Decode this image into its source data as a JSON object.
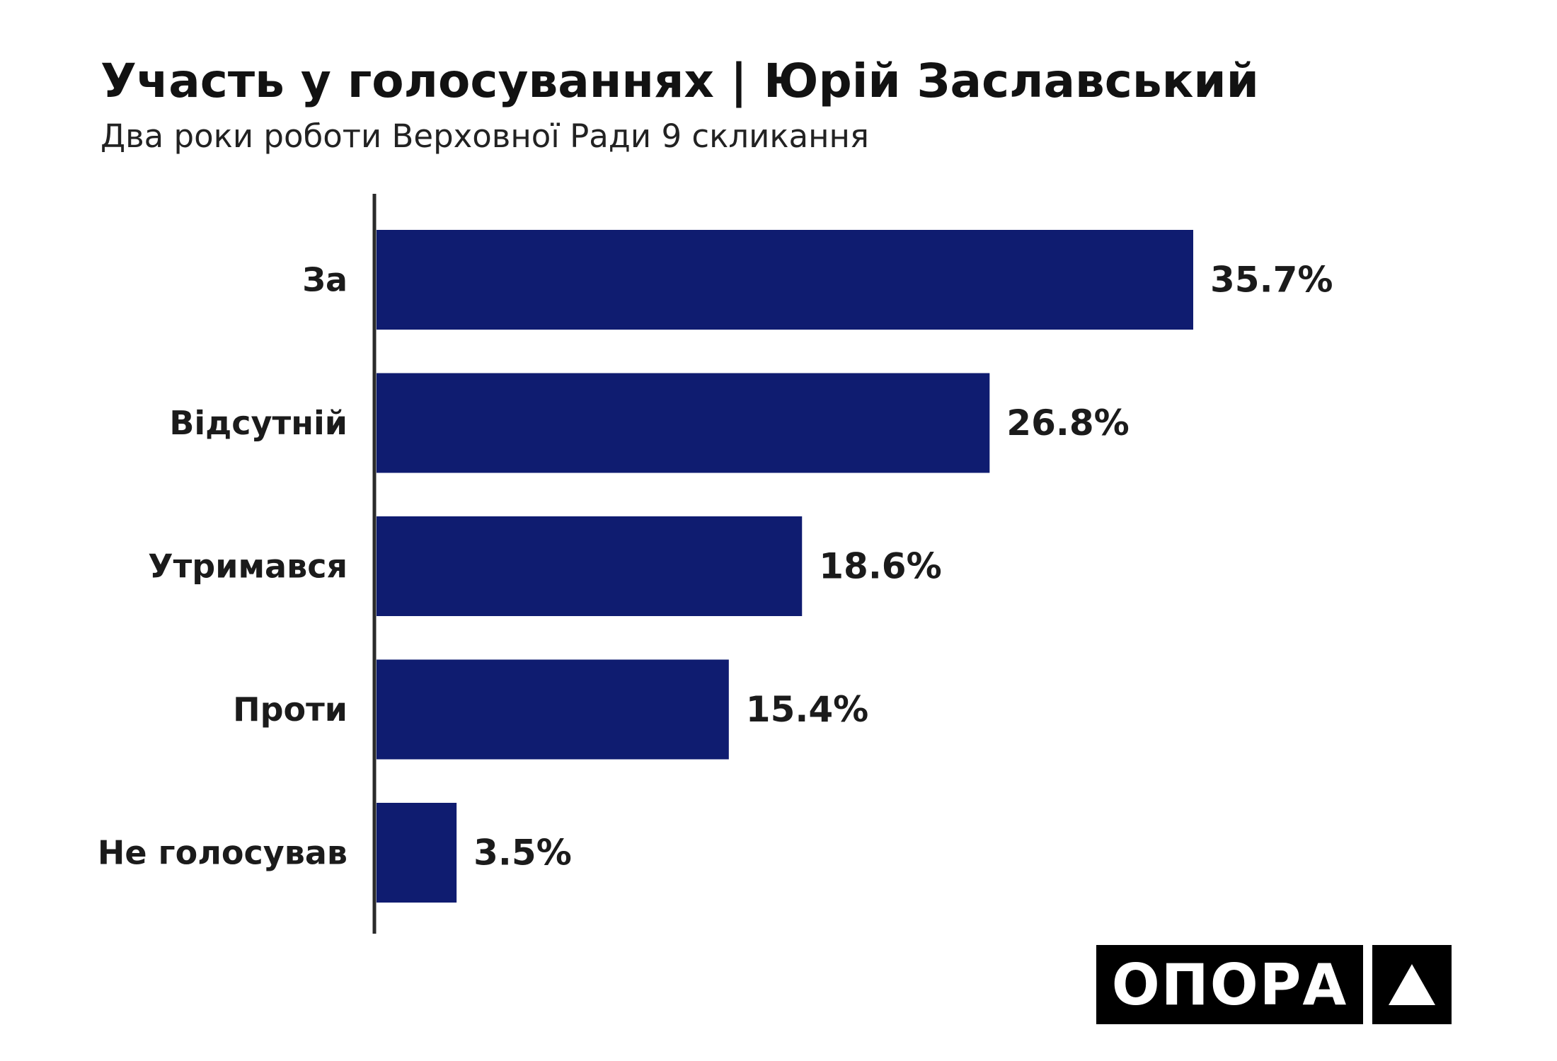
{
  "header": {
    "title": "Участь у голосуваннях | Юрій Заславський",
    "subtitle": "Два роки роботи Верховної Ради 9 скликання"
  },
  "logo": {
    "text": "ОПОРА",
    "mark_icon": "triangle-up-icon"
  },
  "colors": {
    "bar": "#0f1c70",
    "axis": "#2a2a2a",
    "text": "#1b1b1b"
  },
  "chart_data": {
    "type": "bar",
    "orientation": "horizontal",
    "categories": [
      "За",
      "Відсутній",
      "Утримався",
      "Проти",
      "Не голосував"
    ],
    "values": [
      35.7,
      26.8,
      18.6,
      15.4,
      3.5
    ],
    "value_labels": [
      "35.7%",
      "26.8%",
      "18.6%",
      "15.4%",
      "3.5%"
    ],
    "unit": "%",
    "xlim": [
      0,
      35.7
    ],
    "grid": false,
    "legend": "none"
  }
}
